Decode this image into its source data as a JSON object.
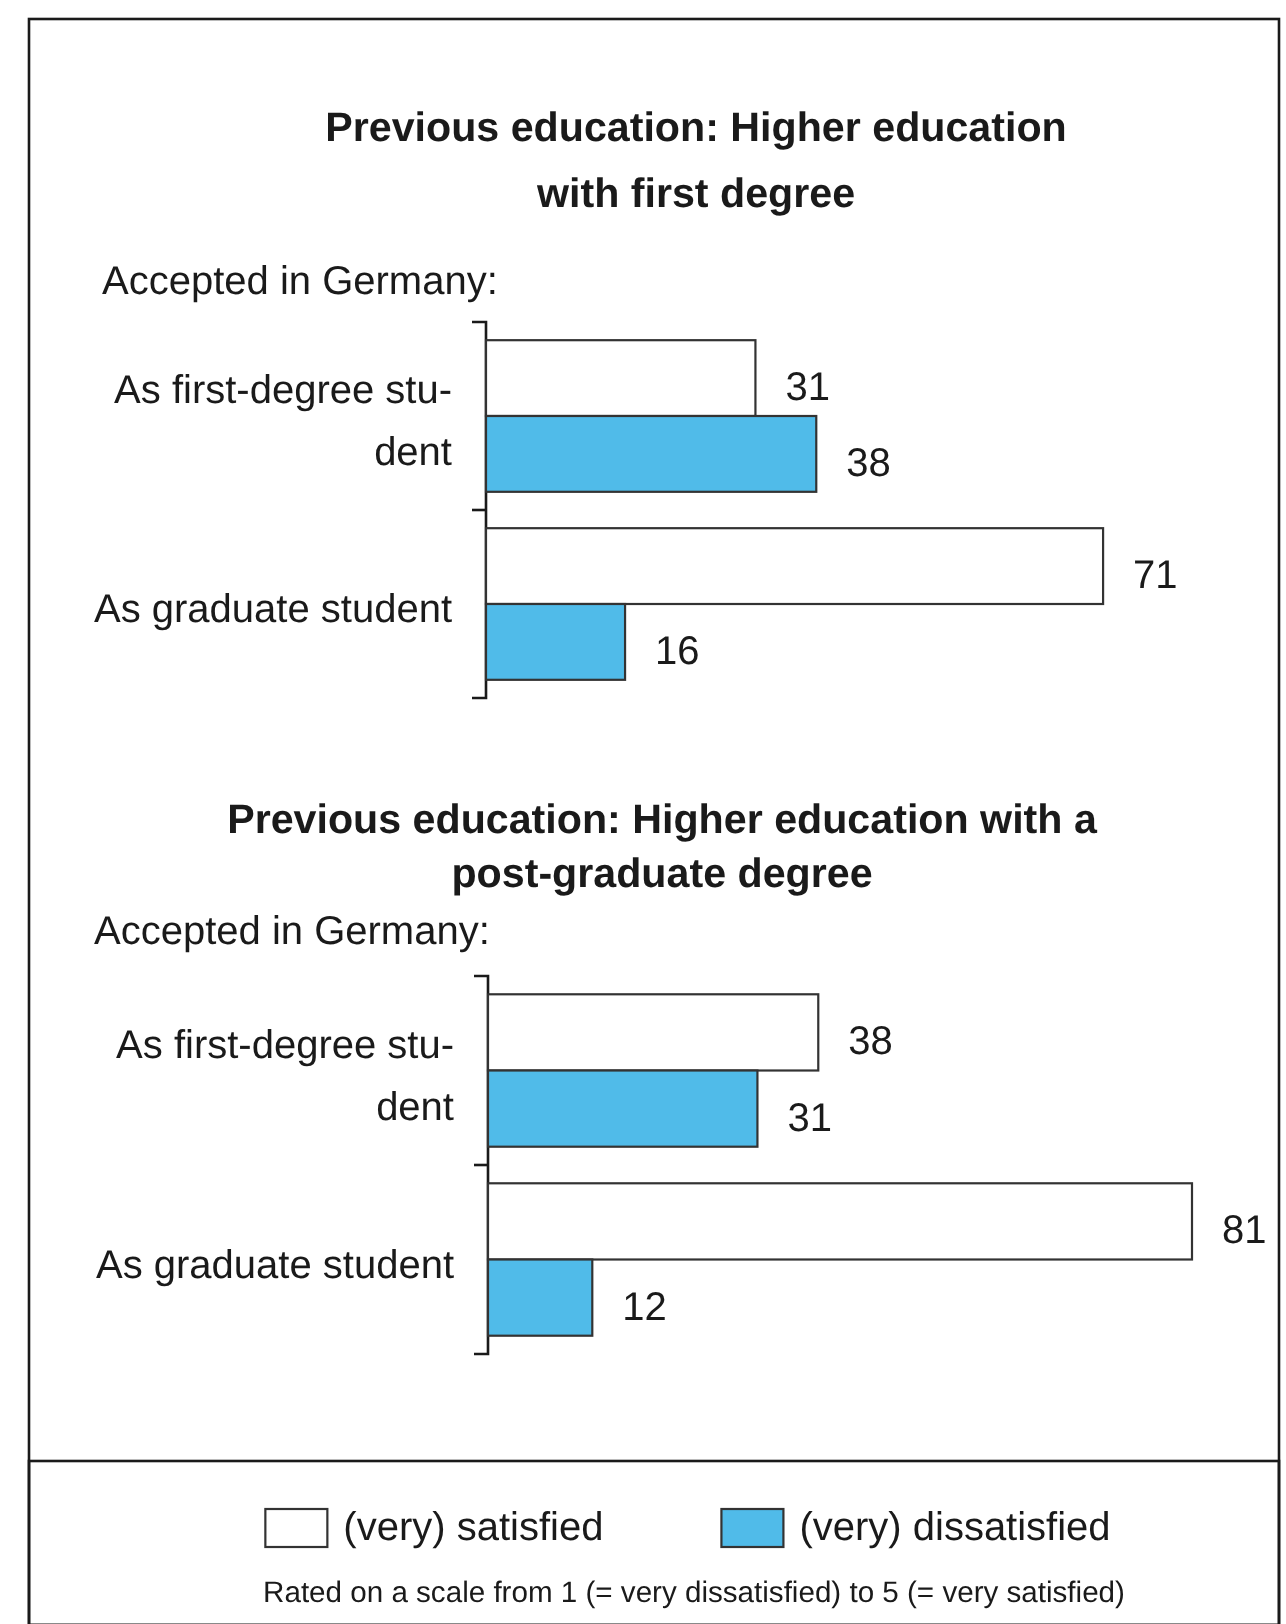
{
  "chart_data": [
    {
      "type": "bar",
      "orientation": "horizontal",
      "title": "Previous education: Higher education\nwith first degree",
      "ylabel": "Accepted in Germany:",
      "categories": [
        "As first-degree stu-\ndent",
        "As graduate student"
      ],
      "series": [
        {
          "color": "#ffffff",
          "values": [
            31,
            71
          ]
        },
        {
          "color": "#50bbe9",
          "values": [
            38,
            16
          ]
        }
      ],
      "data_labels": true
    },
    {
      "type": "bar",
      "orientation": "horizontal",
      "title": "Previous education: Higher education with a\npost-graduate degree",
      "ylabel": "Accepted in Germany:",
      "categories": [
        "As first-degree stu-\ndent",
        "As graduate student"
      ],
      "series": [
        {
          "name": "(very) satisfied",
          "color": "#ffffff",
          "values": [
            38,
            81
          ]
        },
        {
          "name": "(very) dissatisfied",
          "color": "#50bbe9",
          "values": [
            31,
            12
          ]
        }
      ],
      "data_labels": true,
      "legend": "bottom",
      "annotations": [
        "Rated on a scale from 1 (= very dissatisfied) to 5 (= very satisfied)"
      ]
    }
  ]
}
